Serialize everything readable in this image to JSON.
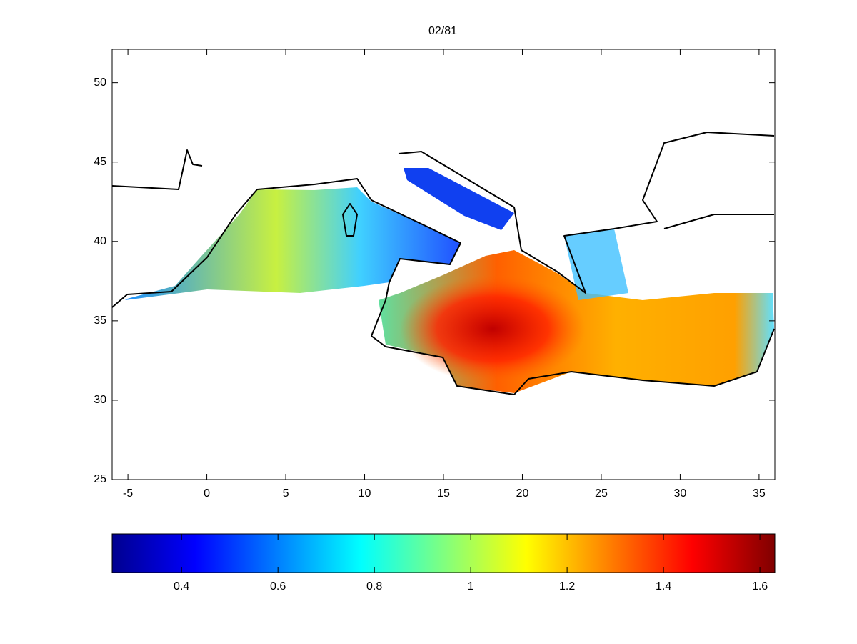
{
  "chart_data": {
    "type": "map",
    "title": "02/81",
    "xlim": [
      -6,
      36
    ],
    "ylim": [
      25,
      52.1
    ],
    "xticks": [
      -5,
      0,
      5,
      10,
      15,
      20,
      25,
      30,
      35
    ],
    "yticks": [
      25,
      30,
      35,
      40,
      45,
      50
    ],
    "colorbar": {
      "lim": [
        0.256,
        1.631
      ],
      "ticks": [
        0.4,
        0.6,
        0.8,
        1,
        1.2,
        1.4,
        1.6
      ]
    }
  }
}
